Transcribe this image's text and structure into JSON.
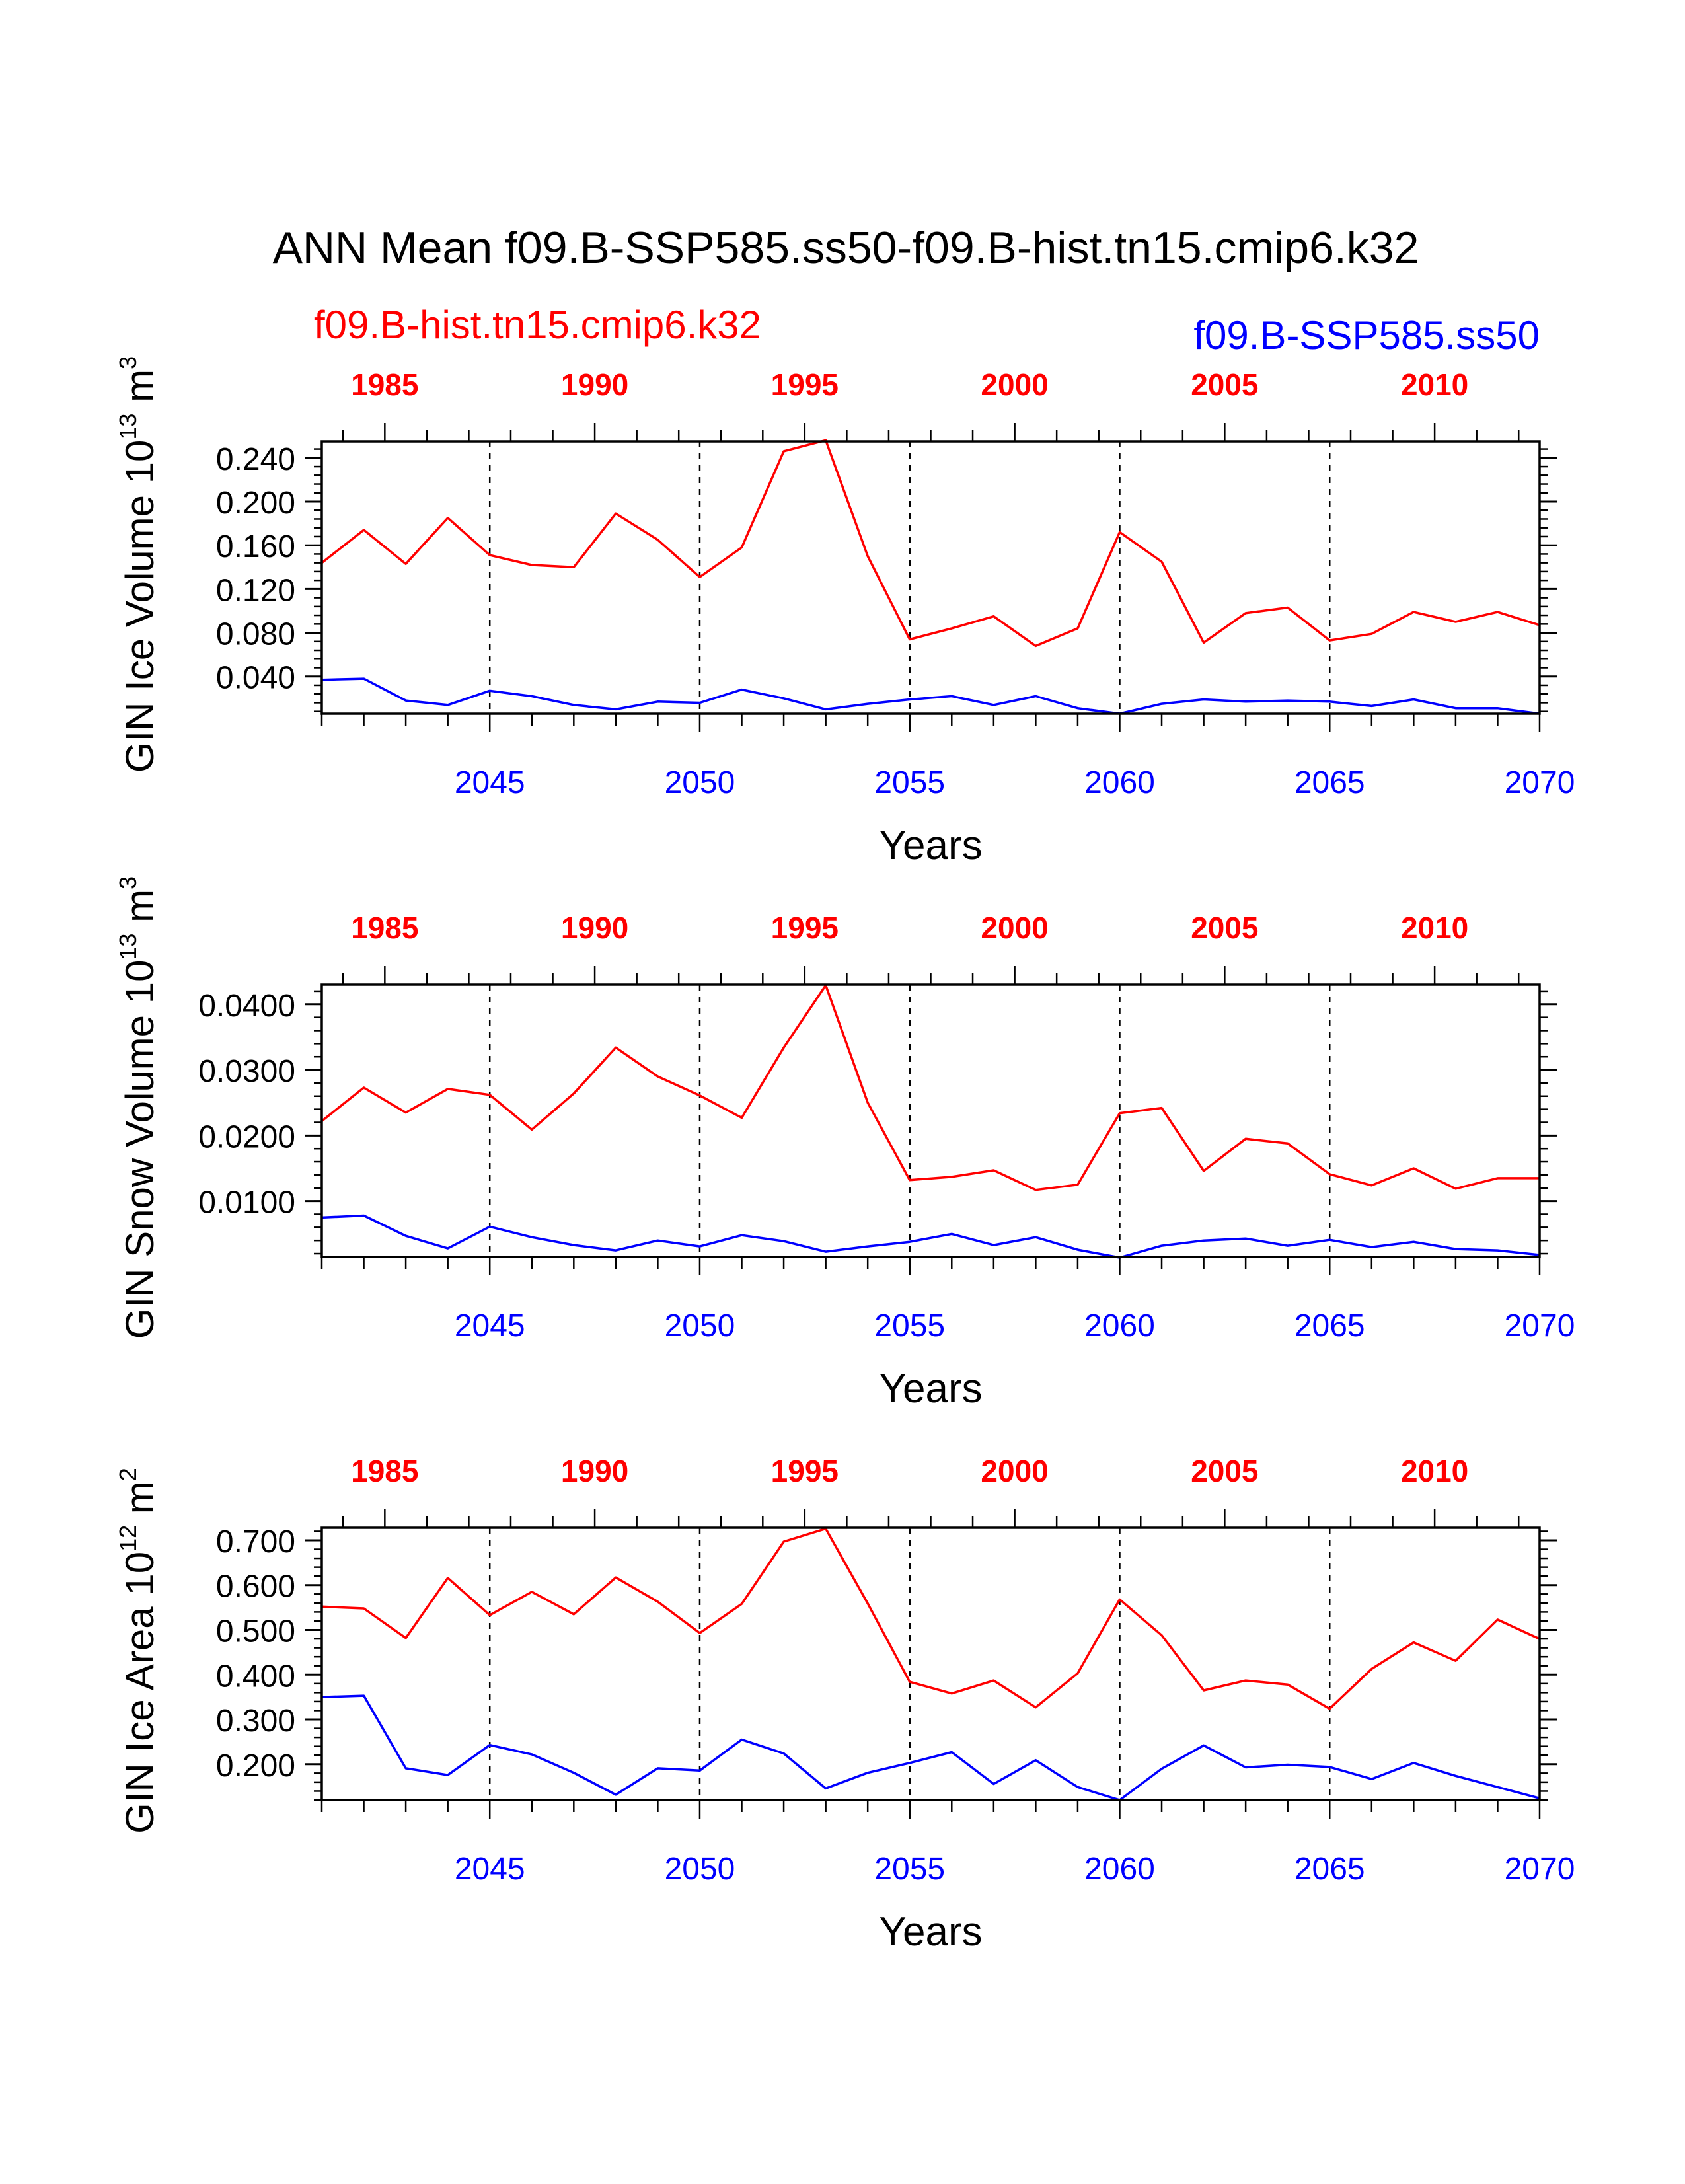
{
  "title": "ANN Mean f09.B-SSP585.ss50-f09.B-hist.tn15.cmip6.k32",
  "legend": {
    "left_label": "f09.B-hist.tn15.cmip6.k32",
    "right_label": "f09.B-SSP585.ss50",
    "left_color": "#ff0000",
    "right_color": "#0000ff"
  },
  "colors": {
    "red": "#ff0000",
    "blue": "#0000ff",
    "axis": "#000000"
  },
  "chart_data": [
    {
      "type": "line",
      "ylabel": "GIN Ice Volume 10",
      "ylabel_exp": "13",
      "ylabel_unit": " m",
      "ylabel_unit_exp": "3",
      "xlabel": "Years",
      "ylim": [
        0.006,
        0.255
      ],
      "y_ticks": [
        0.04,
        0.08,
        0.12,
        0.16,
        0.2,
        0.24
      ],
      "y_tick_labels": [
        "0.040",
        "0.080",
        "0.120",
        "0.160",
        "0.200",
        "0.240"
      ],
      "y_minor_step": 0.008,
      "x_bottom_range": [
        2041,
        2070
      ],
      "x_bottom_ticks": [
        2045,
        2050,
        2055,
        2060,
        2065,
        2070
      ],
      "x_top_range": [
        1983.5,
        2012.5
      ],
      "x_top_ticks": [
        1985,
        1990,
        1995,
        2000,
        2005,
        2010
      ],
      "series": [
        {
          "name": "f09.B-hist.tn15.cmip6.k32",
          "color": "#ff0000",
          "axis": "top",
          "x": [
            1983.5,
            1984.5,
            1985.5,
            1986.5,
            1987.5,
            1988.5,
            1989.5,
            1990.5,
            1991.5,
            1992.5,
            1993.5,
            1994.5,
            1995.5,
            1996.5,
            1997.5,
            1998.5,
            1999.5,
            2000.5,
            2001.5,
            2002.5,
            2003.5,
            2004.5,
            2005.5,
            2006.5,
            2007.5,
            2008.5,
            2009.5,
            2010.5,
            2011.5,
            2012.5
          ],
          "values": [
            0.144,
            0.174,
            0.143,
            0.185,
            0.151,
            0.142,
            0.14,
            0.189,
            0.165,
            0.131,
            0.158,
            0.246,
            0.256,
            0.15,
            0.074,
            0.084,
            0.095,
            0.068,
            0.084,
            0.172,
            0.145,
            0.071,
            0.098,
            0.103,
            0.073,
            0.079,
            0.099,
            0.09,
            0.099,
            0.087
          ]
        },
        {
          "name": "f09.B-SSP585.ss50",
          "color": "#0000ff",
          "axis": "bottom",
          "x": [
            2041,
            2042,
            2043,
            2044,
            2045,
            2046,
            2047,
            2048,
            2049,
            2050,
            2051,
            2052,
            2053,
            2054,
            2055,
            2056,
            2057,
            2058,
            2059,
            2060,
            2061,
            2062,
            2063,
            2064,
            2065,
            2066,
            2067,
            2068,
            2069,
            2070
          ],
          "values": [
            0.037,
            0.038,
            0.018,
            0.014,
            0.027,
            0.022,
            0.014,
            0.01,
            0.017,
            0.016,
            0.028,
            0.02,
            0.01,
            0.015,
            0.019,
            0.022,
            0.014,
            0.022,
            0.011,
            0.006,
            0.015,
            0.019,
            0.017,
            0.018,
            0.017,
            0.013,
            0.019,
            0.011,
            0.011,
            0.006
          ]
        }
      ]
    },
    {
      "type": "line",
      "ylabel": "GIN Snow Volume 10",
      "ylabel_exp": "13",
      "ylabel_unit": " m",
      "ylabel_unit_exp": "3",
      "xlabel": "Years",
      "ylim": [
        0.0015,
        0.043
      ],
      "y_ticks": [
        0.01,
        0.02,
        0.03,
        0.04
      ],
      "y_tick_labels": [
        "0.0100",
        "0.0200",
        "0.0300",
        "0.0400"
      ],
      "y_minor_step": 0.002,
      "x_bottom_range": [
        2041,
        2070
      ],
      "x_bottom_ticks": [
        2045,
        2050,
        2055,
        2060,
        2065,
        2070
      ],
      "x_top_range": [
        1983.5,
        2012.5
      ],
      "x_top_ticks": [
        1985,
        1990,
        1995,
        2000,
        2005,
        2010
      ],
      "series": [
        {
          "name": "f09.B-hist.tn15.cmip6.k32",
          "color": "#ff0000",
          "axis": "top",
          "x": [
            1983.5,
            1984.5,
            1985.5,
            1986.5,
            1987.5,
            1988.5,
            1989.5,
            1990.5,
            1991.5,
            1992.5,
            1993.5,
            1994.5,
            1995.5,
            1996.5,
            1997.5,
            1998.5,
            1999.5,
            2000.5,
            2001.5,
            2002.5,
            2003.5,
            2004.5,
            2005.5,
            2006.5,
            2007.5,
            2008.5,
            2009.5,
            2010.5,
            2011.5,
            2012.5
          ],
          "values": [
            0.0222,
            0.0273,
            0.0235,
            0.0271,
            0.0262,
            0.0209,
            0.0264,
            0.0334,
            0.029,
            0.0261,
            0.0227,
            0.0334,
            0.0429,
            0.025,
            0.0132,
            0.0137,
            0.0147,
            0.0117,
            0.0125,
            0.0234,
            0.0242,
            0.0146,
            0.0195,
            0.0188,
            0.0141,
            0.0124,
            0.015,
            0.0119,
            0.0135,
            0.0135
          ]
        },
        {
          "name": "f09.B-SSP585.ss50",
          "color": "#0000ff",
          "axis": "bottom",
          "x": [
            2041,
            2042,
            2043,
            2044,
            2045,
            2046,
            2047,
            2048,
            2049,
            2050,
            2051,
            2052,
            2053,
            2054,
            2055,
            2056,
            2057,
            2058,
            2059,
            2060,
            2061,
            2062,
            2063,
            2064,
            2065,
            2066,
            2067,
            2068,
            2069,
            2070
          ],
          "values": [
            0.0075,
            0.0078,
            0.0047,
            0.0028,
            0.0061,
            0.0045,
            0.0033,
            0.0025,
            0.004,
            0.0031,
            0.0048,
            0.0039,
            0.0023,
            0.0031,
            0.0038,
            0.005,
            0.0033,
            0.0045,
            0.0026,
            0.0014,
            0.0032,
            0.004,
            0.0043,
            0.0032,
            0.0041,
            0.003,
            0.0038,
            0.0027,
            0.0025,
            0.0018
          ]
        }
      ]
    },
    {
      "type": "line",
      "ylabel": "GIN Ice Area 10",
      "ylabel_exp": "12",
      "ylabel_unit": " m",
      "ylabel_unit_exp": "2",
      "xlabel": "Years",
      "ylim": [
        0.12,
        0.728
      ],
      "y_ticks": [
        0.2,
        0.3,
        0.4,
        0.5,
        0.6,
        0.7
      ],
      "y_tick_labels": [
        "0.200",
        "0.300",
        "0.400",
        "0.500",
        "0.600",
        "0.700"
      ],
      "y_minor_step": 0.02,
      "x_bottom_range": [
        2041,
        2070
      ],
      "x_bottom_ticks": [
        2045,
        2050,
        2055,
        2060,
        2065,
        2070
      ],
      "x_top_range": [
        1983.5,
        2012.5
      ],
      "x_top_ticks": [
        1985,
        1990,
        1995,
        2000,
        2005,
        2010
      ],
      "series": [
        {
          "name": "f09.B-hist.tn15.cmip6.k32",
          "color": "#ff0000",
          "axis": "top",
          "x": [
            1983.5,
            1984.5,
            1985.5,
            1986.5,
            1987.5,
            1988.5,
            1989.5,
            1990.5,
            1991.5,
            1992.5,
            1993.5,
            1994.5,
            1995.5,
            1996.5,
            1997.5,
            1998.5,
            1999.5,
            2000.5,
            2001.5,
            2002.5,
            2003.5,
            2004.5,
            2005.5,
            2006.5,
            2007.5,
            2008.5,
            2009.5,
            2010.5,
            2011.5,
            2012.5
          ],
          "values": [
            0.552,
            0.548,
            0.482,
            0.616,
            0.533,
            0.585,
            0.535,
            0.617,
            0.563,
            0.493,
            0.558,
            0.697,
            0.726,
            0.559,
            0.384,
            0.358,
            0.387,
            0.327,
            0.403,
            0.568,
            0.488,
            0.365,
            0.387,
            0.378,
            0.324,
            0.413,
            0.472,
            0.431,
            0.523,
            0.48
          ]
        },
        {
          "name": "f09.B-SSP585.ss50",
          "color": "#0000ff",
          "axis": "bottom",
          "x": [
            2041,
            2042,
            2043,
            2044,
            2045,
            2046,
            2047,
            2048,
            2049,
            2050,
            2051,
            2052,
            2053,
            2054,
            2055,
            2056,
            2057,
            2058,
            2059,
            2060,
            2061,
            2062,
            2063,
            2064,
            2065,
            2066,
            2067,
            2068,
            2069,
            2070
          ],
          "values": [
            0.35,
            0.353,
            0.191,
            0.176,
            0.243,
            0.222,
            0.181,
            0.132,
            0.191,
            0.186,
            0.255,
            0.224,
            0.146,
            0.181,
            0.203,
            0.227,
            0.156,
            0.209,
            0.149,
            0.12,
            0.19,
            0.242,
            0.193,
            0.199,
            0.194,
            0.167,
            0.203,
            0.174,
            0.149,
            0.124
          ]
        }
      ]
    }
  ]
}
